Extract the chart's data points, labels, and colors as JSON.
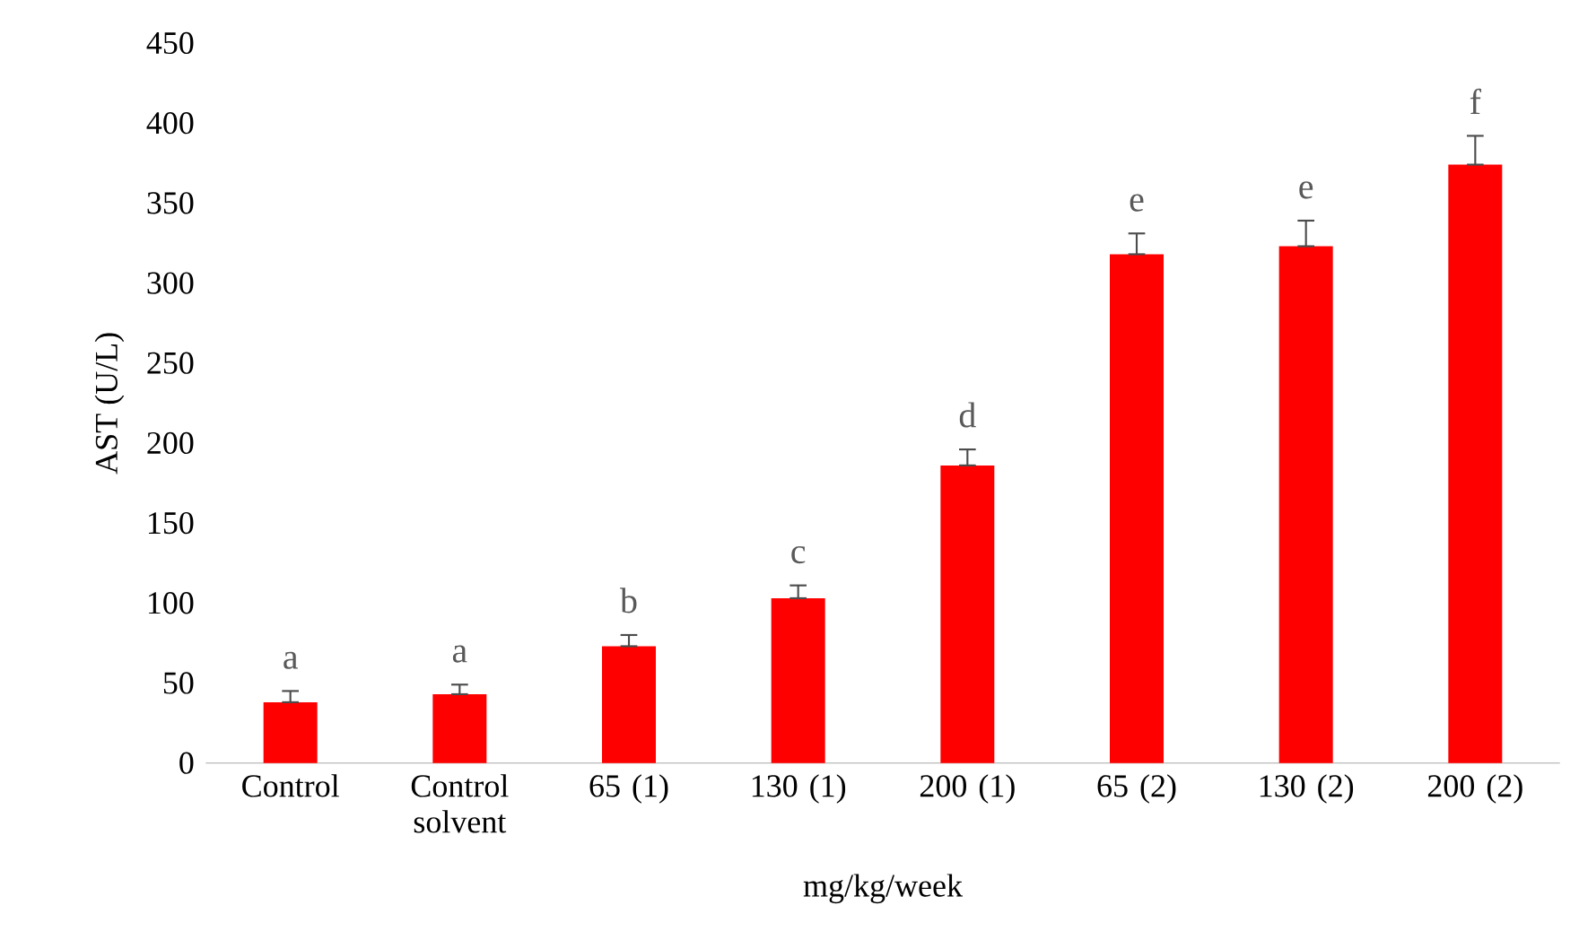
{
  "chart_data": {
    "type": "bar",
    "xlabel": "mg/kg/week",
    "ylabel": "AST (U/L)",
    "categories": [
      "Control",
      "Control solvent",
      "65 (1)",
      "130 (1)",
      "200 (1)",
      "65 (2)",
      "130 (2)",
      "200 (2)"
    ],
    "values": [
      38,
      43,
      73,
      103,
      186,
      318,
      323,
      374
    ],
    "errors": [
      [
        38,
        45
      ],
      [
        43,
        49
      ],
      [
        73,
        80
      ],
      [
        103,
        111
      ],
      [
        186,
        196
      ],
      [
        318,
        331
      ],
      [
        323,
        339
      ],
      [
        374,
        392
      ]
    ],
    "color": "#ff0000",
    "ylim": [
      0,
      450
    ],
    "yticks": [
      0,
      50,
      100,
      150,
      200,
      250,
      300,
      350,
      400,
      450
    ],
    "grid": false,
    "annotations": [
      "a",
      "a",
      "b",
      "c",
      "d",
      "e",
      "e",
      "f"
    ]
  }
}
